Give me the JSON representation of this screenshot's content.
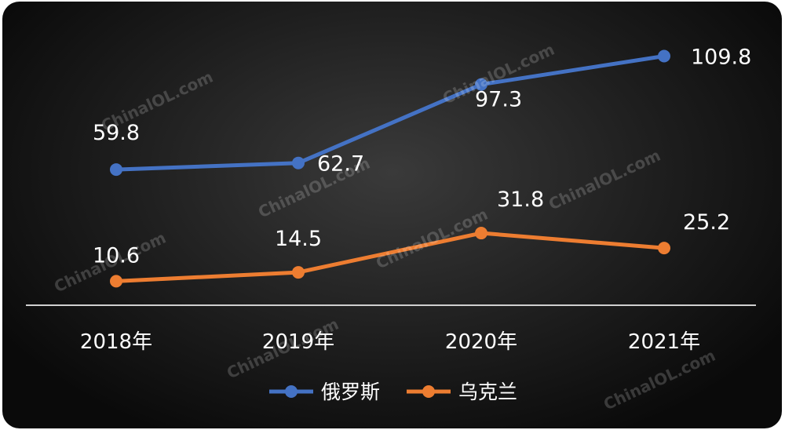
{
  "watermark_text": "ChinalOL.com",
  "chart_data": {
    "type": "line",
    "categories": [
      "2018年",
      "2019年",
      "2020年",
      "2021年"
    ],
    "series": [
      {
        "name": "俄罗斯",
        "values": [
          59.8,
          62.7,
          97.3,
          109.8
        ],
        "color": "#4472C4"
      },
      {
        "name": "乌克兰",
        "values": [
          10.6,
          14.5,
          31.8,
          25.2
        ],
        "color": "#ED7D31"
      }
    ],
    "ylim": [
      0,
      120
    ],
    "grid": false,
    "legend_position": "bottom-center",
    "data_labels": true
  }
}
